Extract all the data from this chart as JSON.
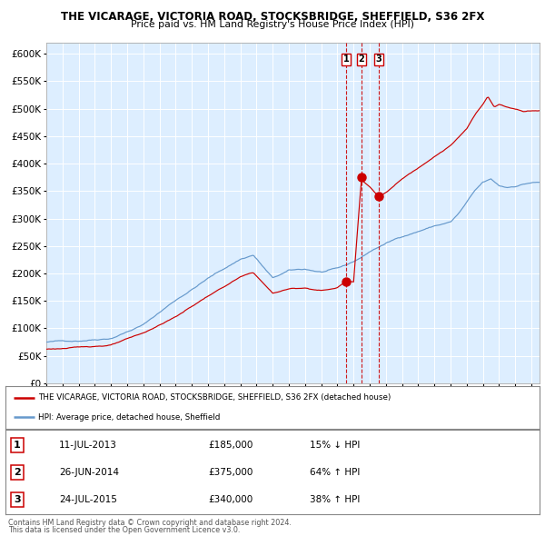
{
  "title": "THE VICARAGE, VICTORIA ROAD, STOCKSBRIDGE, SHEFFIELD, S36 2FX",
  "subtitle": "Price paid vs. HM Land Registry's House Price Index (HPI)",
  "legend_line1": "THE VICARAGE, VICTORIA ROAD, STOCKSBRIDGE, SHEFFIELD, S36 2FX (detached house)",
  "legend_line2": "HPI: Average price, detached house, Sheffield",
  "transactions": [
    {
      "num": 1,
      "date_x": 2013.53,
      "price": 185000,
      "label": "11-JUL-2013",
      "amount": "£185,000",
      "change": "15% ↓ HPI"
    },
    {
      "num": 2,
      "date_x": 2014.49,
      "price": 375000,
      "label": "26-JUN-2014",
      "amount": "£375,000",
      "change": "64% ↑ HPI"
    },
    {
      "num": 3,
      "date_x": 2015.56,
      "price": 340000,
      "label": "24-JUL-2015",
      "amount": "£340,000",
      "change": "38% ↑ HPI"
    }
  ],
  "ylim": [
    0,
    620000
  ],
  "yticks": [
    0,
    50000,
    100000,
    150000,
    200000,
    250000,
    300000,
    350000,
    400000,
    450000,
    500000,
    550000,
    600000
  ],
  "xlim_start": 1995.0,
  "xlim_end": 2025.5,
  "red_color": "#cc0000",
  "blue_color": "#6699cc",
  "background_color": "#ddeeff",
  "fig_bg_color": "#ffffff",
  "footer_line1": "Contains HM Land Registry data © Crown copyright and database right 2024.",
  "footer_line2": "This data is licensed under the Open Government Licence v3.0."
}
